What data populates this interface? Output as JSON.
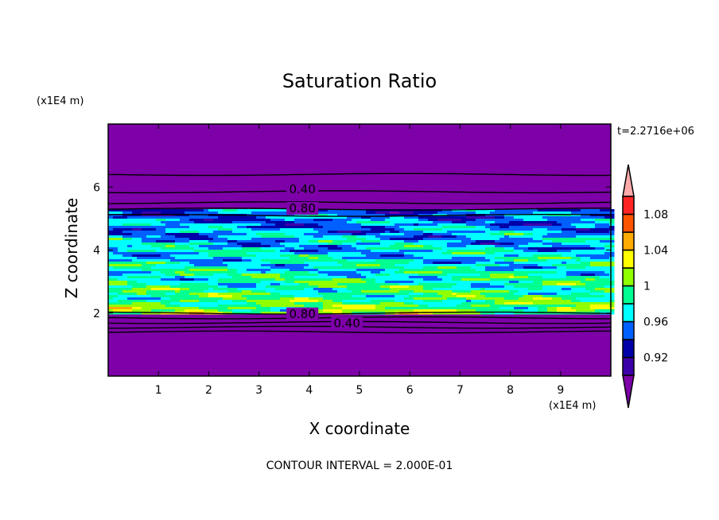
{
  "chart_data": {
    "type": "heatmap",
    "subtype": "filled contour",
    "title": "Saturation Ratio",
    "xlabel": "X coordinate",
    "ylabel": "Z coordinate",
    "x_unit": "(x1E4 m)",
    "y_unit": "(x1E4 m)",
    "xlim": [
      0,
      10
    ],
    "ylim": [
      0,
      8
    ],
    "xticks": [
      "1",
      "2",
      "3",
      "4",
      "5",
      "6",
      "7",
      "8",
      "9"
    ],
    "yticks": [
      "2",
      "4",
      "6"
    ],
    "time_label": "t=2.2716e+06",
    "footer": "CONTOUR INTERVAL = 2.000E-01",
    "colorbar": {
      "levels": [
        0.9,
        0.92,
        0.94,
        0.96,
        0.98,
        1.0,
        1.02,
        1.04,
        1.06,
        1.08,
        1.1
      ],
      "tick_labels": [
        {
          "value": 0.92,
          "label": "0.92"
        },
        {
          "value": 0.96,
          "label": "0.96"
        },
        {
          "value": 1.0,
          "label": "1"
        },
        {
          "value": 1.04,
          "label": "1.04"
        },
        {
          "value": 1.08,
          "label": "1.08"
        }
      ],
      "colors": [
        "#3c00a8",
        "#0000a8",
        "#0060ff",
        "#00ffff",
        "#00ff90",
        "#90ff00",
        "#ffff00",
        "#ffaa00",
        "#ff5500",
        "#ff2424"
      ],
      "under_color": "#7d00a8",
      "over_color": "#ffaaaa",
      "extend": "both"
    },
    "contour_labels": [
      {
        "label": "0.40",
        "x": 3.5,
        "z": 5.95
      },
      {
        "label": "0.80",
        "x": 3.5,
        "z": 5.35
      },
      {
        "label": "0.80",
        "x": 3.5,
        "z": 2.0
      },
      {
        "label": "0.40",
        "x": 3.5,
        "z": 1.7
      }
    ],
    "contour_lines_z": [
      6.4,
      5.85,
      5.5,
      5.3,
      5.1,
      2.0,
      1.85,
      1.7,
      1.55,
      1.4
    ],
    "moist_layer_z": [
      2.0,
      5.3
    ]
  }
}
